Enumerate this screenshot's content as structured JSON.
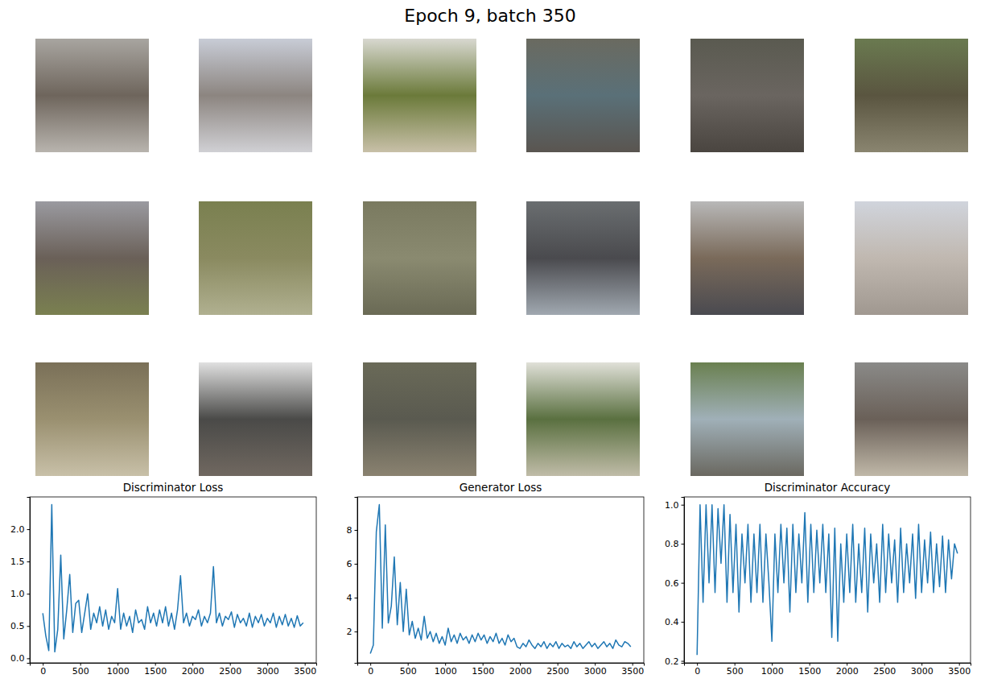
{
  "title": "Epoch 9, batch 350",
  "samples": [
    {
      "colors": [
        "#a8a5a0",
        "#6e655c",
        "#b8b4ae"
      ]
    },
    {
      "colors": [
        "#c8ccd6",
        "#8c8580",
        "#d0d0d4"
      ]
    },
    {
      "colors": [
        "#d8d8d0",
        "#6b7a3a",
        "#c8c0a8"
      ]
    },
    {
      "colors": [
        "#6a6a60",
        "#5a7078",
        "#5a5550"
      ]
    },
    {
      "colors": [
        "#5a5a50",
        "#6a6560",
        "#4a4540"
      ]
    },
    {
      "colors": [
        "#6a7a50",
        "#5a5540",
        "#8a8570"
      ]
    },
    {
      "colors": [
        "#9a9aa0",
        "#6a6058",
        "#7a8050"
      ]
    },
    {
      "colors": [
        "#7a8050",
        "#8a8a60",
        "#b0b090"
      ]
    },
    {
      "colors": [
        "#7a7a60",
        "#8a8a70",
        "#6a6a55"
      ]
    },
    {
      "colors": [
        "#6a6e70",
        "#4a4a4e",
        "#a0a8b0"
      ]
    },
    {
      "colors": [
        "#b8b8b8",
        "#7a6a5a",
        "#4a4a50"
      ]
    },
    {
      "colors": [
        "#d0d4dc",
        "#c0b8b0",
        "#a09890"
      ]
    },
    {
      "colors": [
        "#7a7058",
        "#9a9070",
        "#c8c0a8"
      ]
    },
    {
      "colors": [
        "#e0e0e0",
        "#4a4a48",
        "#706860"
      ]
    },
    {
      "colors": [
        "#6a6a58",
        "#5a5a50",
        "#8a8270"
      ]
    },
    {
      "colors": [
        "#e0e0d8",
        "#5a7040",
        "#c0bca8"
      ]
    },
    {
      "colors": [
        "#6a8050",
        "#a0b0b8",
        "#6a6860"
      ]
    },
    {
      "colors": [
        "#8a8a88",
        "#6a6058",
        "#c0b8a8"
      ]
    }
  ],
  "chart_data": [
    {
      "type": "line",
      "title": "Discriminator Loss",
      "color": "#1f77b4",
      "x": [
        0,
        40,
        80,
        120,
        160,
        200,
        240,
        280,
        320,
        360,
        400,
        440,
        480,
        520,
        560,
        600,
        640,
        680,
        720,
        760,
        800,
        840,
        880,
        920,
        960,
        1000,
        1040,
        1080,
        1120,
        1160,
        1200,
        1240,
        1280,
        1320,
        1360,
        1400,
        1440,
        1480,
        1520,
        1560,
        1600,
        1640,
        1680,
        1720,
        1760,
        1800,
        1840,
        1880,
        1920,
        1960,
        2000,
        2040,
        2080,
        2120,
        2160,
        2200,
        2240,
        2280,
        2320,
        2360,
        2400,
        2440,
        2480,
        2520,
        2560,
        2600,
        2640,
        2680,
        2720,
        2760,
        2800,
        2840,
        2880,
        2920,
        2960,
        3000,
        3040,
        3080,
        3120,
        3160,
        3200,
        3240,
        3280,
        3320,
        3360,
        3400,
        3440,
        3480
      ],
      "values": [
        0.7,
        0.35,
        0.12,
        2.38,
        0.1,
        0.45,
        1.6,
        0.3,
        0.75,
        1.3,
        0.4,
        0.85,
        0.9,
        0.4,
        0.7,
        1.0,
        0.45,
        0.7,
        0.55,
        0.8,
        0.5,
        0.75,
        0.45,
        0.65,
        0.55,
        1.08,
        0.45,
        0.7,
        0.5,
        0.65,
        0.4,
        0.75,
        0.55,
        0.6,
        0.45,
        0.8,
        0.55,
        0.7,
        0.5,
        0.75,
        0.55,
        0.8,
        0.5,
        0.7,
        0.45,
        0.75,
        1.28,
        0.55,
        0.7,
        0.5,
        0.65,
        0.6,
        0.75,
        0.5,
        0.65,
        0.55,
        0.7,
        1.42,
        0.55,
        0.7,
        0.5,
        0.65,
        0.6,
        0.72,
        0.48,
        0.68,
        0.55,
        0.62,
        0.5,
        0.7,
        0.48,
        0.65,
        0.55,
        0.68,
        0.5,
        0.62,
        0.55,
        0.7,
        0.48,
        0.65,
        0.52,
        0.68,
        0.5,
        0.62,
        0.48,
        0.66,
        0.5,
        0.55
      ],
      "xlim": [
        -174,
        3654
      ],
      "xticks": [
        0,
        500,
        1000,
        1500,
        2000,
        2500,
        3000,
        3500
      ],
      "ylim": [
        -0.07,
        2.5
      ],
      "yticks": [
        {
          "value": 0,
          "label": "0.0"
        },
        0.5,
        {
          "value": 1,
          "label": "1.0"
        },
        1.5,
        {
          "value": 2,
          "label": "2.0"
        }
      ]
    },
    {
      "type": "line",
      "title": "Generator Loss",
      "color": "#1f77b4",
      "x": [
        0,
        40,
        80,
        120,
        160,
        200,
        240,
        280,
        320,
        360,
        400,
        440,
        480,
        520,
        560,
        600,
        640,
        680,
        720,
        760,
        800,
        840,
        880,
        920,
        960,
        1000,
        1040,
        1080,
        1120,
        1160,
        1200,
        1240,
        1280,
        1320,
        1360,
        1400,
        1440,
        1480,
        1520,
        1560,
        1600,
        1640,
        1680,
        1720,
        1760,
        1800,
        1840,
        1880,
        1920,
        1960,
        2000,
        2040,
        2080,
        2120,
        2160,
        2200,
        2240,
        2280,
        2320,
        2360,
        2400,
        2440,
        2480,
        2520,
        2560,
        2600,
        2640,
        2680,
        2720,
        2760,
        2800,
        2840,
        2880,
        2920,
        2960,
        3000,
        3040,
        3080,
        3120,
        3160,
        3200,
        3240,
        3280,
        3320,
        3360,
        3400,
        3440,
        3480
      ],
      "values": [
        0.7,
        1.2,
        7.9,
        9.5,
        2.2,
        8.3,
        2.5,
        3.5,
        6.4,
        2.4,
        4.9,
        2.0,
        4.5,
        1.8,
        2.6,
        1.6,
        2.2,
        1.5,
        2.9,
        1.6,
        2.0,
        1.4,
        1.9,
        1.3,
        1.7,
        1.2,
        2.2,
        1.4,
        1.8,
        1.3,
        1.9,
        1.5,
        1.7,
        1.3,
        1.8,
        1.4,
        1.9,
        1.5,
        1.8,
        1.3,
        1.7,
        1.4,
        1.9,
        1.3,
        1.6,
        1.2,
        1.8,
        1.4,
        1.6,
        1.1,
        1.0,
        1.3,
        1.1,
        1.5,
        1.2,
        1.0,
        1.3,
        1.1,
        1.4,
        1.0,
        1.3,
        1.1,
        1.4,
        1.0,
        1.3,
        1.1,
        1.2,
        1.0,
        1.4,
        1.1,
        1.3,
        1.0,
        1.2,
        1.4,
        1.1,
        1.3,
        1.0,
        1.2,
        1.4,
        1.1,
        1.3,
        1.0,
        1.5,
        1.2,
        1.1,
        1.4,
        1.3,
        1.1
      ],
      "xlim": [
        -174,
        3654
      ],
      "xticks": [
        0,
        500,
        1000,
        1500,
        2000,
        2500,
        3000,
        3500
      ],
      "ylim": [
        0.15,
        9.95
      ],
      "yticks": [
        2,
        4,
        6,
        8
      ]
    },
    {
      "type": "line",
      "title": "Discriminator Accuracy",
      "color": "#1f77b4",
      "x": [
        0,
        40,
        80,
        120,
        160,
        200,
        240,
        280,
        320,
        360,
        400,
        440,
        480,
        520,
        560,
        600,
        640,
        680,
        720,
        760,
        800,
        840,
        880,
        920,
        960,
        1000,
        1040,
        1080,
        1120,
        1160,
        1200,
        1240,
        1280,
        1320,
        1360,
        1400,
        1440,
        1480,
        1520,
        1560,
        1600,
        1640,
        1680,
        1720,
        1760,
        1800,
        1840,
        1880,
        1920,
        1960,
        2000,
        2040,
        2080,
        2120,
        2160,
        2200,
        2240,
        2280,
        2320,
        2360,
        2400,
        2440,
        2480,
        2520,
        2560,
        2600,
        2640,
        2680,
        2720,
        2760,
        2800,
        2840,
        2880,
        2920,
        2960,
        3000,
        3040,
        3080,
        3120,
        3160,
        3200,
        3240,
        3280,
        3320,
        3360,
        3400,
        3440,
        3480
      ],
      "values": [
        0.23,
        1.0,
        0.5,
        1.0,
        0.6,
        1.0,
        0.55,
        0.98,
        0.7,
        1.0,
        0.5,
        0.95,
        0.55,
        0.9,
        0.45,
        0.85,
        0.6,
        0.9,
        0.5,
        0.85,
        0.55,
        0.9,
        0.5,
        0.85,
        0.6,
        0.3,
        0.85,
        0.55,
        0.9,
        0.6,
        0.88,
        0.45,
        0.9,
        0.55,
        0.85,
        0.6,
        0.96,
        0.5,
        0.9,
        0.55,
        0.87,
        0.6,
        0.9,
        0.55,
        0.85,
        0.32,
        0.88,
        0.3,
        0.8,
        0.5,
        0.85,
        0.55,
        0.9,
        0.5,
        0.8,
        0.55,
        0.88,
        0.45,
        0.85,
        0.6,
        0.8,
        0.5,
        0.9,
        0.55,
        0.85,
        0.6,
        0.82,
        0.5,
        0.88,
        0.55,
        0.8,
        0.6,
        0.85,
        0.52,
        0.9,
        0.55,
        0.82,
        0.6,
        0.86,
        0.55,
        0.8,
        0.58,
        0.84,
        0.55,
        0.82,
        0.62,
        0.8,
        0.75
      ],
      "xlim": [
        -174,
        3654
      ],
      "xticks": [
        0,
        500,
        1000,
        1500,
        2000,
        2500,
        3000,
        3500
      ],
      "ylim": [
        0.19,
        1.04
      ],
      "yticks": [
        0.2,
        0.4,
        0.6,
        0.8,
        {
          "value": 1,
          "label": "1.0"
        }
      ]
    }
  ]
}
